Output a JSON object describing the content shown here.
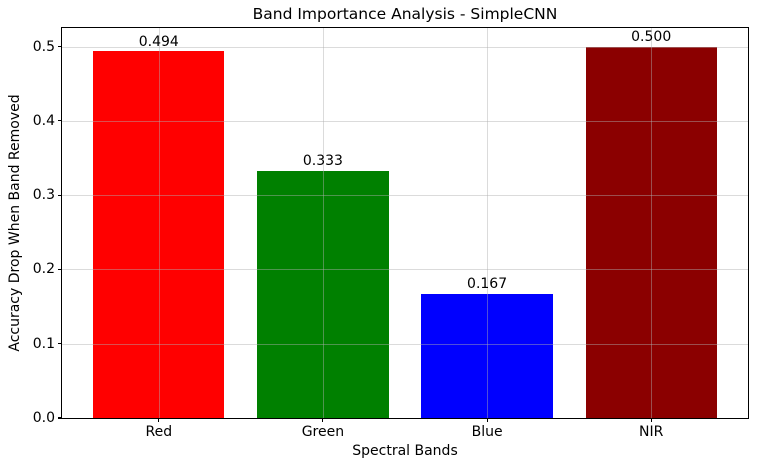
{
  "chart_data": {
    "type": "bar",
    "title": "Band Importance Analysis - SimpleCNN",
    "xlabel": "Spectral Bands",
    "ylabel": "Accuracy Drop When Band Removed",
    "categories": [
      "Red",
      "Green",
      "Blue",
      "NIR"
    ],
    "values": [
      0.494,
      0.333,
      0.167,
      0.5
    ],
    "bar_labels": [
      "0.494",
      "0.333",
      "0.167",
      "0.500"
    ],
    "bar_colors": [
      "#ff0000",
      "#008000",
      "#0000ff",
      "#8b0000"
    ],
    "yticks": [
      0,
      0.1,
      0.2,
      0.3,
      0.4,
      0.5
    ],
    "ytick_labels": [
      "0.0",
      "0.1",
      "0.2",
      "0.3",
      "0.4",
      "0.5"
    ],
    "ylim": [
      0,
      0.525
    ],
    "grid": true,
    "grid_color": "#b0b0b0",
    "legend_position": "none",
    "background_color": "#ffffff",
    "text_color": "#000000",
    "bar_edge": "none"
  }
}
